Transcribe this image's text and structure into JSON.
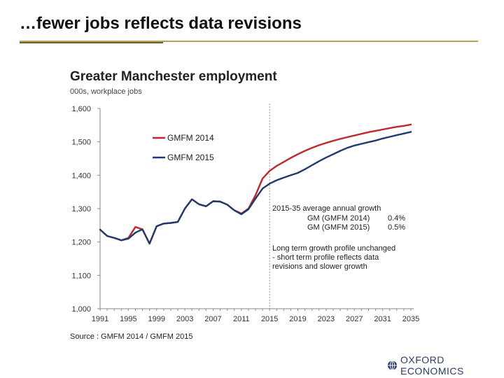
{
  "slide": {
    "title": "…fewer jobs reflects data revisions",
    "logo_text": "OXFORD ECONOMICS"
  },
  "colors": {
    "gmfm2014": "#c0282d",
    "gmfm2015": "#1f3a6e",
    "axis": "#8a8a8a",
    "gold_rule": "#b8a25a"
  },
  "chart_data": {
    "type": "line",
    "title": "Greater Manchester employment",
    "subtitle": "000s, workplace jobs",
    "source": "Source : GMFM 2014 / GMFM 2015",
    "ylim": [
      1000,
      1600
    ],
    "y_ticks": [
      1000,
      1100,
      1200,
      1300,
      1400,
      1500,
      1600
    ],
    "y_tick_labels": [
      "1,000",
      "1,100",
      "1,200",
      "1,300",
      "1,400",
      "1,500",
      "1,600"
    ],
    "xlim": [
      1991,
      2035
    ],
    "x_ticks": [
      1991,
      1995,
      1999,
      2003,
      2007,
      2011,
      2015,
      2019,
      2023,
      2027,
      2031,
      2035
    ],
    "x_tick_labels": [
      "1991",
      "1995",
      "1999",
      "2003",
      "2007",
      "2011",
      "2015",
      "2019",
      "2023",
      "2027",
      "2031",
      "2035"
    ],
    "vline_x": 2015,
    "legend": {
      "position": "top-left"
    },
    "series": [
      {
        "name": "GMFM 2014",
        "color": "#c0282d",
        "x": [
          1991,
          1992,
          1993,
          1994,
          1995,
          1996,
          1997,
          1998,
          1999,
          2000,
          2001,
          2002,
          2003,
          2004,
          2005,
          2006,
          2007,
          2008,
          2009,
          2010,
          2011,
          2012,
          2013,
          2014,
          2015,
          2016,
          2017,
          2018,
          2019,
          2020,
          2021,
          2022,
          2023,
          2024,
          2025,
          2026,
          2027,
          2028,
          2029,
          2030,
          2031,
          2032,
          2033,
          2034,
          2035
        ],
        "y": [
          1237,
          1218,
          1212,
          1205,
          1212,
          1245,
          1238,
          1195,
          1247,
          1255,
          1257,
          1260,
          1300,
          1328,
          1313,
          1307,
          1322,
          1321,
          1312,
          1295,
          1285,
          1300,
          1340,
          1390,
          1413,
          1428,
          1440,
          1452,
          1463,
          1473,
          1482,
          1490,
          1497,
          1503,
          1509,
          1514,
          1519,
          1524,
          1529,
          1533,
          1537,
          1541,
          1545,
          1548,
          1552
        ]
      },
      {
        "name": "GMFM 2015",
        "color": "#1f3a6e",
        "x": [
          1991,
          1992,
          1993,
          1994,
          1995,
          1996,
          1997,
          1998,
          1999,
          2000,
          2001,
          2002,
          2003,
          2004,
          2005,
          2006,
          2007,
          2008,
          2009,
          2010,
          2011,
          2012,
          2013,
          2014,
          2015,
          2016,
          2017,
          2018,
          2019,
          2020,
          2021,
          2022,
          2023,
          2024,
          2025,
          2026,
          2027,
          2028,
          2029,
          2030,
          2031,
          2032,
          2033,
          2034,
          2035
        ],
        "y": [
          1237,
          1218,
          1212,
          1205,
          1210,
          1228,
          1238,
          1195,
          1247,
          1255,
          1257,
          1260,
          1300,
          1328,
          1313,
          1307,
          1322,
          1321,
          1312,
          1295,
          1283,
          1298,
          1330,
          1360,
          1375,
          1385,
          1393,
          1400,
          1407,
          1418,
          1430,
          1442,
          1453,
          1463,
          1473,
          1482,
          1489,
          1494,
          1499,
          1504,
          1510,
          1515,
          1520,
          1525,
          1530
        ]
      }
    ],
    "annotations": {
      "growth_title": "2015-35 average annual growth",
      "growth_rows": [
        {
          "label": "GM (GMFM 2014)",
          "value": "0.4%"
        },
        {
          "label": "GM (GMFM 2015)",
          "value": "0.5%"
        }
      ],
      "note_lines": [
        "Long term growth profile unchanged",
        "- short term profile reflects data",
        "revisions and slower growth"
      ]
    }
  }
}
